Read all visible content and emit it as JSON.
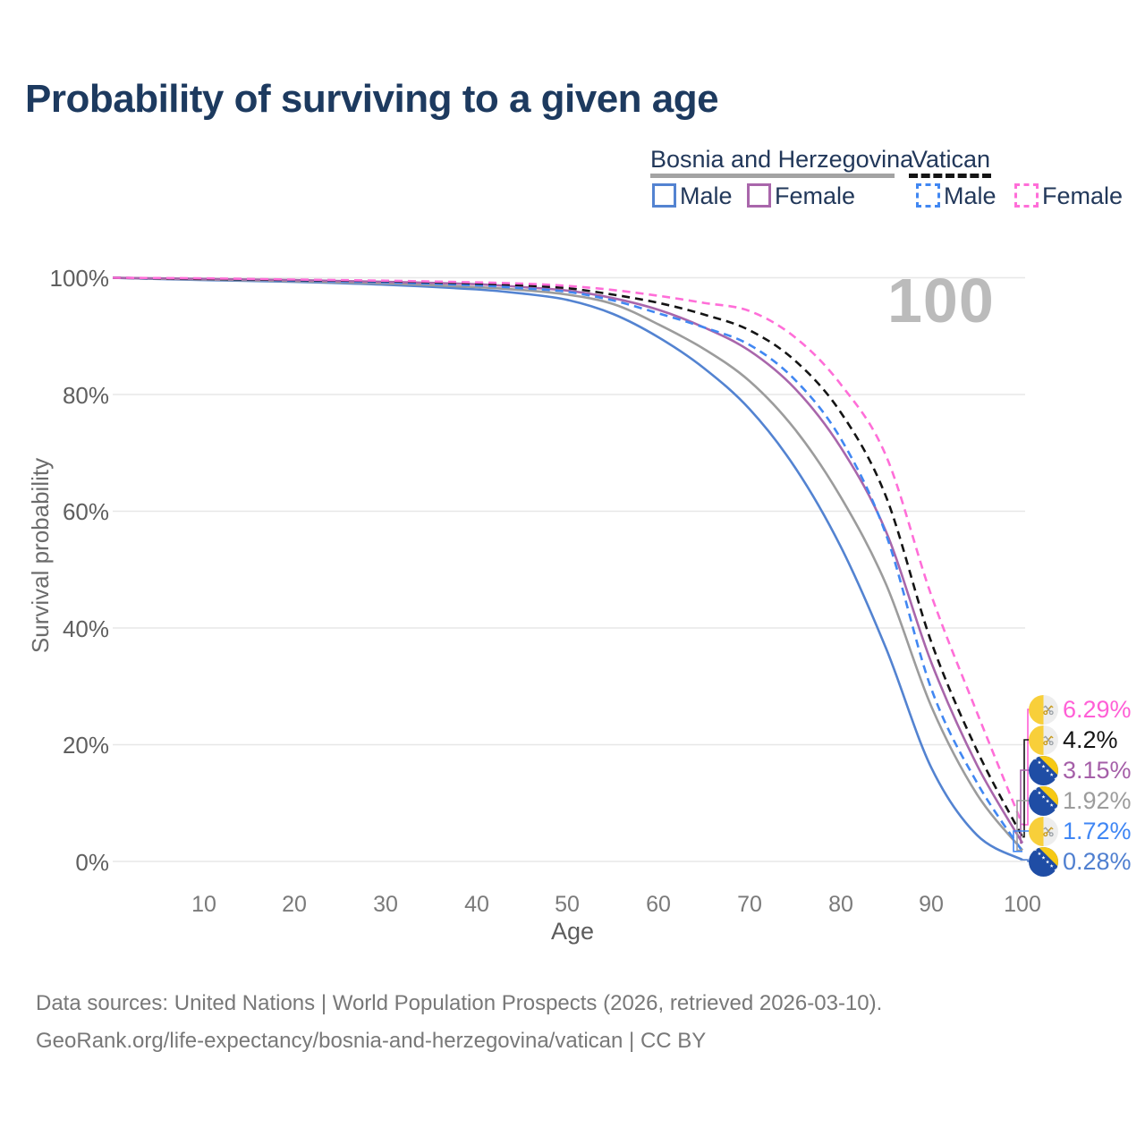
{
  "title": "Probability of surviving to a given age",
  "watermark": "100",
  "legend": {
    "groups": [
      {
        "label": "Bosnia and Herzegovina",
        "line_style": "solid",
        "line_color": "#a3a3a3",
        "items": [
          {
            "label": "Male",
            "color": "#5383d1",
            "style": "solid"
          },
          {
            "label": "Female",
            "color": "#a966ab",
            "style": "solid"
          }
        ]
      },
      {
        "label": "Vatican",
        "line_style": "dashed",
        "line_color": "#141414",
        "items": [
          {
            "label": "Male",
            "color": "#4187f2",
            "style": "dashed"
          },
          {
            "label": "Female",
            "color": "#ff6ed8",
            "style": "dashed"
          }
        ]
      }
    ]
  },
  "chart_data": {
    "type": "line",
    "title": "Probability of surviving to a given age",
    "xlabel": "Age",
    "ylabel": "Survival probability",
    "xlim": [
      0,
      100
    ],
    "ylim": [
      0,
      100
    ],
    "grid": "horizontal",
    "legend_position": "top-right",
    "x_ticks": [
      10,
      20,
      30,
      40,
      50,
      60,
      70,
      80,
      90,
      100
    ],
    "x_tick_labels": [
      "10",
      "20",
      "30",
      "40",
      "50",
      "60",
      "70",
      "80",
      "90",
      "100"
    ],
    "y_tick_labels": [
      "100%",
      "80%",
      "60%",
      "40%",
      "20%",
      "0%"
    ],
    "y_tick_values": [
      100,
      80,
      60,
      40,
      20,
      0
    ],
    "x": [
      0,
      10,
      20,
      30,
      40,
      45,
      50,
      55,
      60,
      65,
      70,
      75,
      80,
      85,
      90,
      95,
      100
    ],
    "series": [
      {
        "name": "Bosnia and Herzegovina Male",
        "color": "#5383d1",
        "dash": "solid",
        "values": [
          100,
          99.6,
          99.3,
          98.8,
          98.0,
          97.3,
          96.2,
          93.8,
          89.8,
          84.5,
          77.5,
          67.5,
          54.0,
          36.5,
          16.0,
          4.5,
          0.28
        ]
      },
      {
        "name": "Bosnia and Herzegovina Total",
        "color": "#9c9c9c",
        "dash": "solid",
        "values": [
          100,
          99.7,
          99.4,
          99.0,
          98.4,
          97.9,
          97.1,
          95.5,
          92.0,
          87.8,
          82.3,
          74.0,
          62.5,
          47.5,
          26.5,
          11.5,
          1.92
        ]
      },
      {
        "name": "Bosnia and Herzegovina Female",
        "color": "#a966ab",
        "dash": "solid",
        "values": [
          100,
          99.8,
          99.6,
          99.3,
          98.9,
          98.4,
          97.8,
          96.5,
          94.5,
          91.5,
          87.5,
          81.0,
          71.0,
          56.5,
          34.0,
          16.5,
          3.15
        ]
      },
      {
        "name": "Vatican Male",
        "color": "#4187f2",
        "dash": "dashed",
        "values": [
          100,
          99.8,
          99.5,
          99.2,
          98.7,
          98.2,
          97.6,
          96.1,
          93.9,
          91.5,
          88.5,
          82.5,
          72.5,
          56.0,
          29.5,
          13.5,
          1.72
        ]
      },
      {
        "name": "Vatican Total",
        "color": "#141414",
        "dash": "dashed",
        "values": [
          100,
          99.8,
          99.6,
          99.4,
          99.0,
          98.7,
          98.2,
          97.1,
          95.7,
          93.7,
          91.0,
          85.8,
          77.0,
          62.5,
          37.5,
          19.0,
          4.2
        ]
      },
      {
        "name": "Vatican Female",
        "color": "#ff6ed8",
        "dash": "dashed",
        "values": [
          100,
          99.9,
          99.7,
          99.5,
          99.2,
          99.0,
          98.6,
          97.9,
          96.9,
          95.7,
          94.3,
          89.8,
          81.8,
          69.5,
          45.5,
          25.5,
          6.29
        ]
      }
    ]
  },
  "annotations": [
    {
      "flag": "vatican",
      "label": "6.29%",
      "value": 6.29,
      "color": "#ff5fd6"
    },
    {
      "flag": "vatican",
      "label": "4.2%",
      "value": 4.2,
      "color": "#141414"
    },
    {
      "flag": "bosnia",
      "label": "3.15%",
      "value": 3.15,
      "color": "#a55fa8"
    },
    {
      "flag": "bosnia",
      "label": "1.92%",
      "value": 1.92,
      "color": "#9c9c9c"
    },
    {
      "flag": "vatican",
      "label": "1.72%",
      "value": 1.72,
      "color": "#3f86f4"
    },
    {
      "flag": "bosnia",
      "label": "0.28%",
      "value": 0.28,
      "color": "#4f7fd0"
    }
  ],
  "footer": {
    "line1": "Data sources: United Nations | World Population Prospects (2026, retrieved 2026-03-10).",
    "line2": "GeoRank.org/life-expectancy/bosnia-and-herzegovina/vatican | CC BY"
  }
}
